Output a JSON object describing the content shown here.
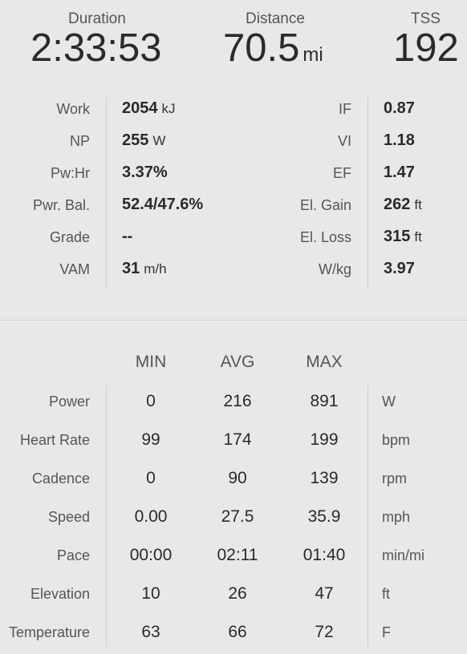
{
  "summary": {
    "duration": {
      "label": "Duration",
      "value": "2:33:53"
    },
    "distance": {
      "label": "Distance",
      "value": "70.5",
      "unit": "mi"
    },
    "tss": {
      "label": "TSS",
      "value": "192"
    }
  },
  "metrics": {
    "left": [
      {
        "label": "Work",
        "value": "2054",
        "unit": "kJ"
      },
      {
        "label": "NP",
        "value": "255",
        "unit": "W"
      },
      {
        "label": "Pw:Hr",
        "value": "3.37%",
        "unit": ""
      },
      {
        "label": "Pwr. Bal.",
        "value": "52.4/47.6%",
        "unit": ""
      },
      {
        "label": "Grade",
        "value": "--",
        "unit": ""
      },
      {
        "label": "VAM",
        "value": "31",
        "unit": "m/h"
      }
    ],
    "right": [
      {
        "label": "IF",
        "value": "0.87",
        "unit": ""
      },
      {
        "label": "VI",
        "value": "1.18",
        "unit": ""
      },
      {
        "label": "EF",
        "value": "1.47",
        "unit": ""
      },
      {
        "label": "El. Gain",
        "value": "262",
        "unit": "ft"
      },
      {
        "label": "El. Loss",
        "value": "315",
        "unit": "ft"
      },
      {
        "label": "W/kg",
        "value": "3.97",
        "unit": ""
      }
    ]
  },
  "stats": {
    "headers": {
      "min": "MIN",
      "avg": "AVG",
      "max": "MAX"
    },
    "rows": [
      {
        "label": "Power",
        "min": "0",
        "avg": "216",
        "max": "891",
        "unit": "W"
      },
      {
        "label": "Heart Rate",
        "min": "99",
        "avg": "174",
        "max": "199",
        "unit": "bpm"
      },
      {
        "label": "Cadence",
        "min": "0",
        "avg": "90",
        "max": "139",
        "unit": "rpm"
      },
      {
        "label": "Speed",
        "min": "0.00",
        "avg": "27.5",
        "max": "35.9",
        "unit": "mph"
      },
      {
        "label": "Pace",
        "min": "00:00",
        "avg": "02:11",
        "max": "01:40",
        "unit": "min/mi"
      },
      {
        "label": "Elevation",
        "min": "10",
        "avg": "26",
        "max": "47",
        "unit": "ft"
      },
      {
        "label": "Temperature",
        "min": "63",
        "avg": "66",
        "max": "72",
        "unit": "F"
      }
    ]
  }
}
